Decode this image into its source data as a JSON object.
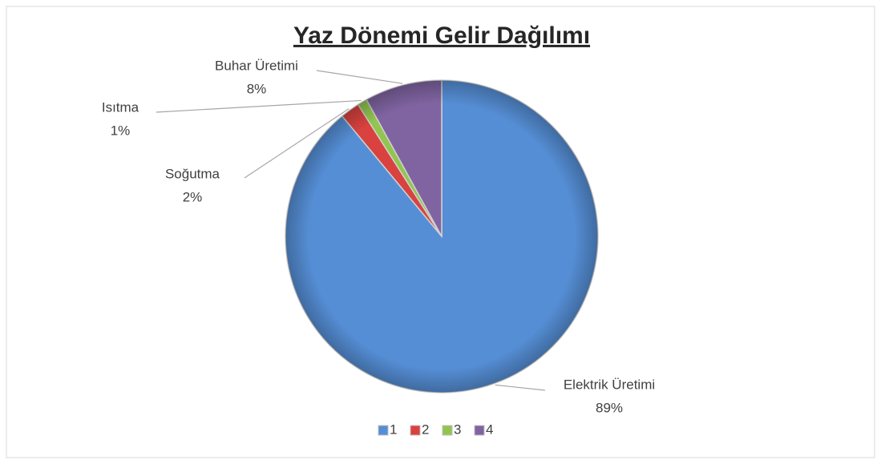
{
  "chart_data": {
    "type": "pie",
    "title": "Yaz Dönemi Gelir Dağılımı",
    "categories": [
      "Elektrik Üretimi",
      "Soğutma",
      "Isıtma",
      "Buhar Üretimi"
    ],
    "values": [
      89,
      2,
      1,
      8
    ],
    "value_labels": [
      "89%",
      "2%",
      "1%",
      "8%"
    ],
    "colors": [
      "#558ed5",
      "#d9423f",
      "#92c54f",
      "#8064a2"
    ],
    "legend": [
      "1",
      "2",
      "3",
      "4"
    ]
  }
}
